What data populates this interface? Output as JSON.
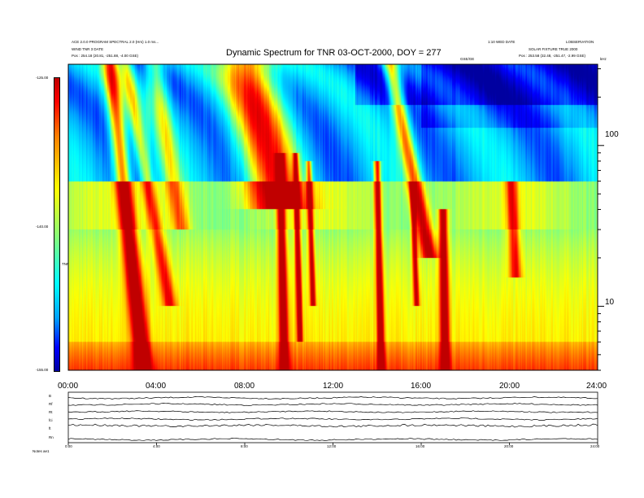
{
  "chart_data": {
    "type": "heatmap",
    "title": "Dynamic Spectrum for TNR 03-OCT-2000, DOY = 277",
    "header_left": [
      "ACE 2.0.0 PROGRAM SPECTRAL 2.0 (Hrs) 1.0 ms...",
      "WIND  TNR  3  DATE",
      "Pos :   254.18 (20.81, -251.88, -4.00  GSE)"
    ],
    "header_right": [
      "1:10  WED  DATE",
      "LOBSERVATION",
      "SOLAR FIXTURE  TRUE 2000",
      "Pos :   253.58 (32.48, -251.47, -2.99  GSE)"
    ],
    "x_axis": {
      "tick_labels": [
        "00:00",
        "04:00",
        "08:00",
        "12:00",
        "16:00",
        "20:00",
        "24:00"
      ],
      "range_hours": [
        0,
        24
      ]
    },
    "y_axis_freq": {
      "scale": "log",
      "range_khz": [
        4,
        320
      ],
      "tick_labels": [
        "100",
        "10"
      ],
      "label": "kHz",
      "sub_label": "GSE/GE"
    },
    "colorbar": {
      "label": "TNR",
      "tick_labels": [
        "-125.00",
        "-140.00",
        "-155.00"
      ],
      "range_db": [
        -155,
        -125
      ]
    },
    "panel_labels": [
      "B",
      "Rf",
      "Rt",
      "fci",
      "ft",
      "Rn"
    ],
    "bottom_tick_labels": [
      "0:00",
      "4:00",
      "8:00",
      "12:00",
      "16:00",
      "20:00",
      "24:00"
    ],
    "footnote": "Notes  ae1",
    "bursts": [
      {
        "t": 1.9,
        "f_top": 320,
        "f_bottom": 4,
        "width_h": 0.35,
        "int": 1.0,
        "delay": 1.5
      },
      {
        "t": 2.6,
        "f_top": 320,
        "f_bottom": 10,
        "width_h": 0.3,
        "int": 0.55,
        "delay": 2.0
      },
      {
        "t": 3.9,
        "f_top": 320,
        "f_bottom": 30,
        "width_h": 0.4,
        "int": 0.5,
        "delay": 1.2
      },
      {
        "t": 8.1,
        "f_top": 320,
        "f_bottom": 40,
        "width_h": 1.2,
        "int": 1.0,
        "delay": 1.5
      },
      {
        "t": 9.6,
        "f_top": 90,
        "f_bottom": 4,
        "width_h": 0.18,
        "int": 1.0,
        "delay": 0.2
      },
      {
        "t": 10.3,
        "f_top": 90,
        "f_bottom": 6,
        "width_h": 0.12,
        "int": 0.95,
        "delay": 0.2
      },
      {
        "t": 10.9,
        "f_top": 80,
        "f_bottom": 10,
        "width_h": 0.12,
        "int": 0.8,
        "delay": 0.2
      },
      {
        "t": 14.0,
        "f_top": 80,
        "f_bottom": 4,
        "width_h": 0.15,
        "int": 0.95,
        "delay": 0.2
      },
      {
        "t": 14.6,
        "f_top": 320,
        "f_bottom": 20,
        "width_h": 0.35,
        "int": 0.9,
        "delay": 1.8
      },
      {
        "t": 15.6,
        "f_top": 60,
        "f_bottom": 10,
        "width_h": 0.12,
        "int": 0.8,
        "delay": 0.2
      },
      {
        "t": 17.0,
        "f_top": 40,
        "f_bottom": 4,
        "width_h": 0.18,
        "int": 1.0,
        "delay": 0.1
      },
      {
        "t": 20.1,
        "f_top": 60,
        "f_bottom": 15,
        "width_h": 0.25,
        "int": 0.6,
        "delay": 0.2
      }
    ],
    "colors": {
      "colorscale": [
        "#0000a0",
        "#0000ff",
        "#00a0ff",
        "#00ffff",
        "#80ff80",
        "#ffff00",
        "#ff8000",
        "#ff0000",
        "#c00000"
      ]
    }
  }
}
